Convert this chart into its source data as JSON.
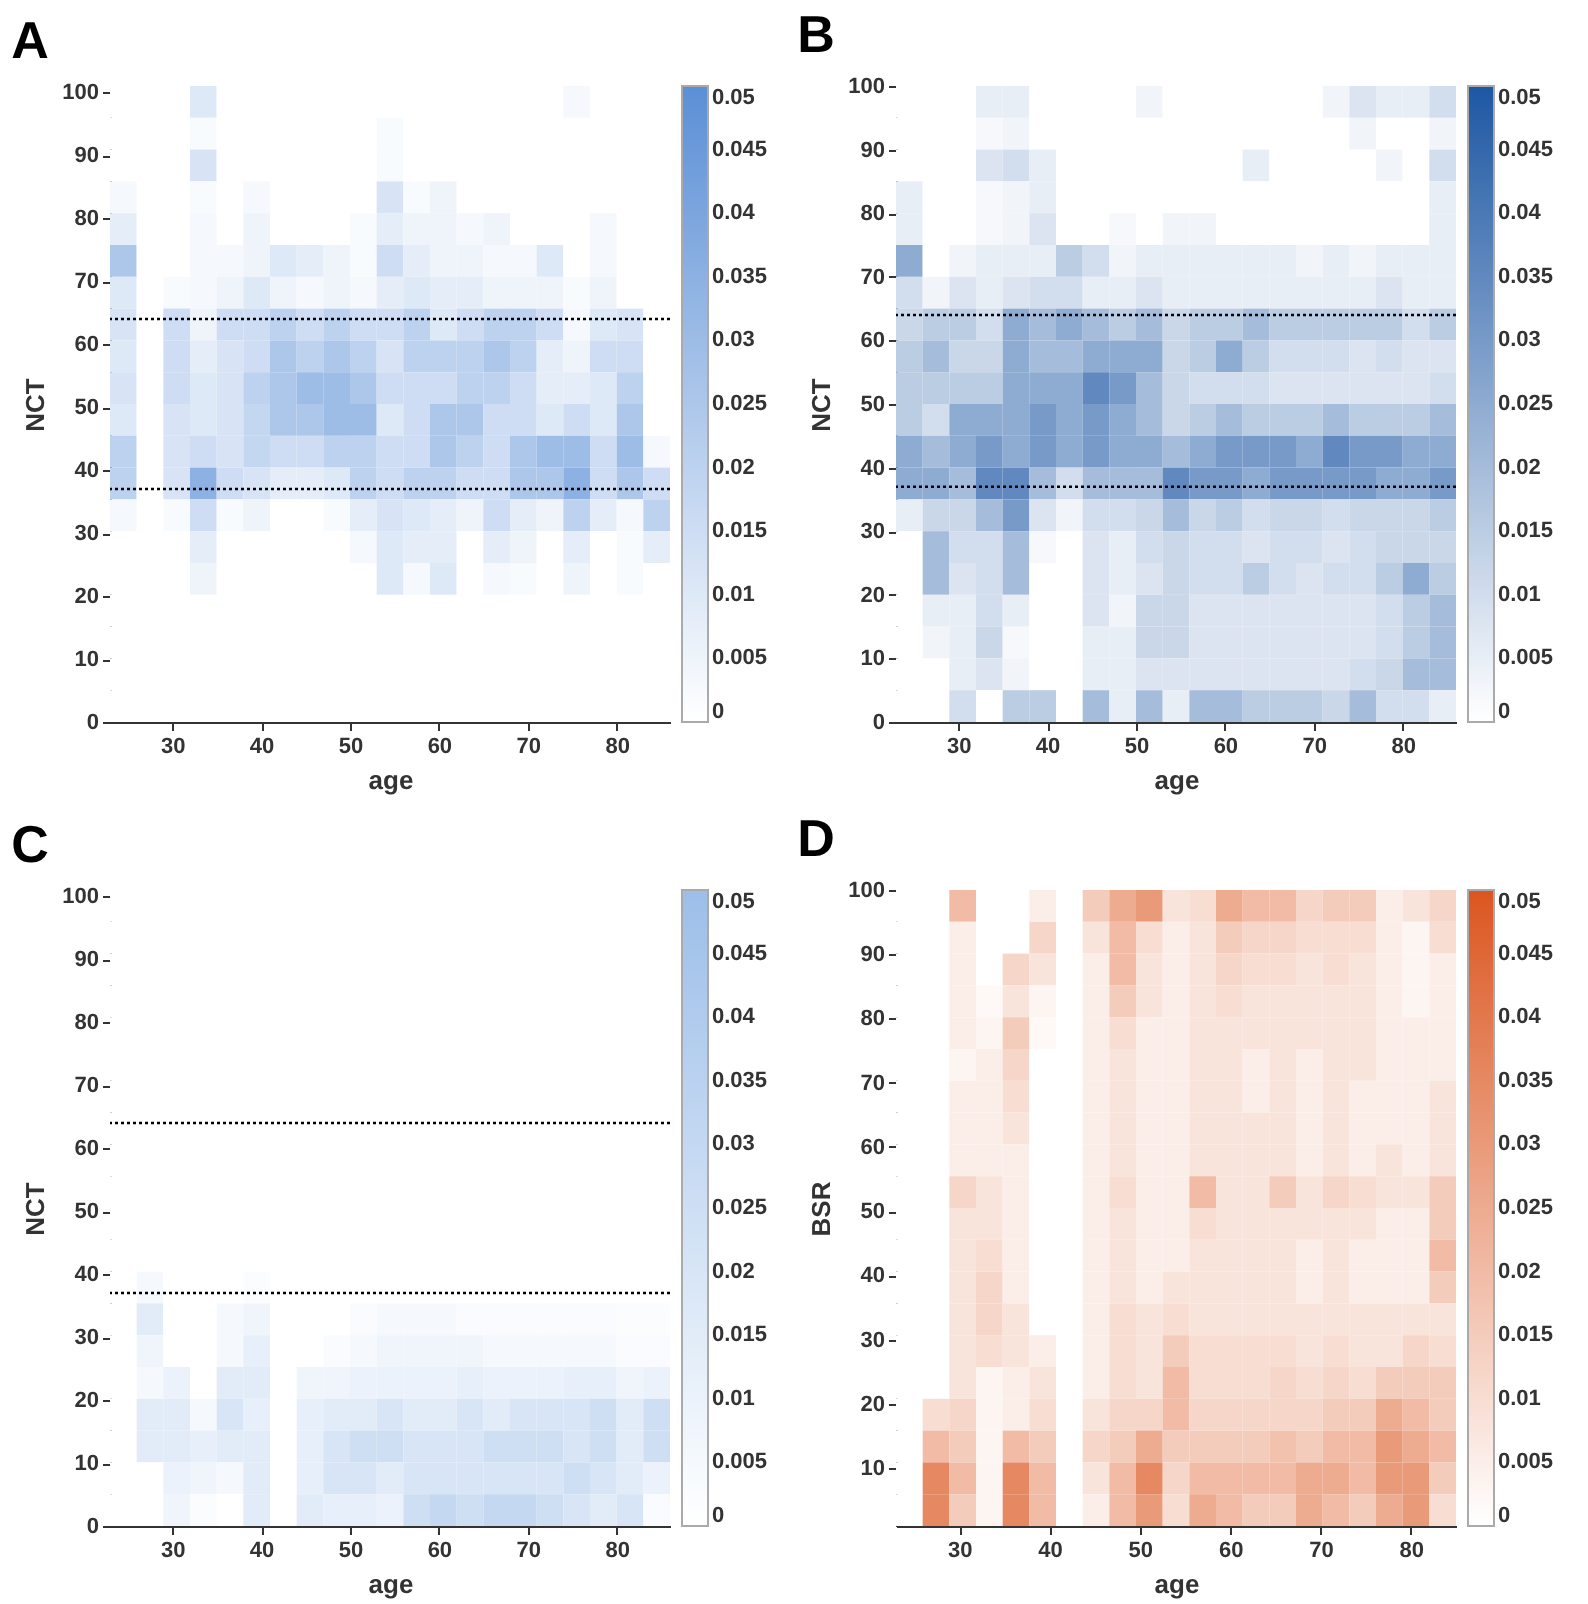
{
  "chart_data": [
    {
      "type": "heatmap",
      "title": "A",
      "xlabel": "age",
      "ylabel": "NCT",
      "xlim": [
        23,
        86
      ],
      "xticks": [
        30,
        40,
        50,
        60,
        70,
        80
      ],
      "ylim": [
        0,
        101
      ],
      "yticks": [
        0,
        10,
        20,
        30,
        40,
        50,
        60,
        70,
        80,
        90,
        100
      ],
      "clim": [
        0,
        0.05
      ],
      "cticks": [
        0,
        0.005,
        0.01,
        0.015,
        0.02,
        0.025,
        0.03,
        0.035,
        0.04,
        0.045,
        0.05
      ],
      "colors": [
        "#ffffff",
        "#5b8fd6"
      ],
      "ref_lines": [
        {
          "axis": "y",
          "value": 64,
          "color": "#000000",
          "line_style": "dotted"
        },
        {
          "axis": "y",
          "value": 37,
          "color": "#000000",
          "line_style": "dotted"
        }
      ],
      "cells": [
        [
          0,
          0,
          0,
          0.01,
          0,
          0,
          0,
          0,
          0,
          0,
          0,
          0,
          0,
          0,
          0,
          0,
          0,
          0.003,
          0,
          0,
          0
        ],
        [
          0,
          0,
          0,
          0.002,
          0,
          0,
          0,
          0,
          0,
          0,
          0.002,
          0,
          0,
          0,
          0,
          0,
          0,
          0,
          0,
          0,
          0
        ],
        [
          0,
          0,
          0,
          0.012,
          0,
          0,
          0,
          0,
          0,
          0,
          0.002,
          0,
          0,
          0,
          0,
          0,
          0,
          0,
          0,
          0,
          0
        ],
        [
          0.003,
          0,
          0,
          0.002,
          0,
          0.003,
          0,
          0,
          0,
          0,
          0.012,
          0.002,
          0.005,
          0,
          0,
          0,
          0,
          0,
          0,
          0,
          0
        ],
        [
          0.008,
          0,
          0,
          0.003,
          0,
          0.005,
          0,
          0,
          0,
          0.002,
          0.008,
          0.005,
          0.005,
          0.003,
          0.005,
          0,
          0,
          0,
          0.003,
          0,
          0
        ],
        [
          0.025,
          0,
          0,
          0.003,
          0.003,
          0.005,
          0.01,
          0.008,
          0.005,
          0.002,
          0.015,
          0.008,
          0.005,
          0.005,
          0.003,
          0.003,
          0.01,
          0,
          0.003,
          0,
          0
        ],
        [
          0.01,
          0,
          0.002,
          0.003,
          0.005,
          0.01,
          0.005,
          0.003,
          0.005,
          0.003,
          0.008,
          0.01,
          0.008,
          0.008,
          0.005,
          0.005,
          0.005,
          0.002,
          0.005,
          0,
          0
        ],
        [
          0.012,
          0,
          0.015,
          0.005,
          0.015,
          0.015,
          0.02,
          0.015,
          0.02,
          0.015,
          0.015,
          0.02,
          0.01,
          0.015,
          0.02,
          0.02,
          0.015,
          0.003,
          0.01,
          0.012,
          0
        ],
        [
          0.01,
          0,
          0.015,
          0.008,
          0.012,
          0.015,
          0.025,
          0.02,
          0.025,
          0.02,
          0.012,
          0.02,
          0.02,
          0.02,
          0.025,
          0.02,
          0.008,
          0.005,
          0.015,
          0.015,
          0
        ],
        [
          0.012,
          0,
          0.015,
          0.01,
          0.012,
          0.02,
          0.025,
          0.03,
          0.03,
          0.025,
          0.015,
          0.015,
          0.015,
          0.02,
          0.02,
          0.015,
          0.008,
          0.008,
          0.01,
          0.02,
          0
        ],
        [
          0.01,
          0,
          0.012,
          0.01,
          0.012,
          0.018,
          0.025,
          0.025,
          0.03,
          0.03,
          0.01,
          0.015,
          0.025,
          0.025,
          0.015,
          0.015,
          0.01,
          0.015,
          0.01,
          0.025,
          0
        ],
        [
          0.02,
          0,
          0.012,
          0.015,
          0.012,
          0.018,
          0.015,
          0.015,
          0.02,
          0.02,
          0.015,
          0.015,
          0.025,
          0.02,
          0.015,
          0.025,
          0.03,
          0.03,
          0.015,
          0.03,
          0.003
        ],
        [
          0.02,
          0,
          0.012,
          0.035,
          0.015,
          0.012,
          0.008,
          0.008,
          0.01,
          0.02,
          0.015,
          0.02,
          0.02,
          0.015,
          0.015,
          0.025,
          0.025,
          0.035,
          0.015,
          0.025,
          0.015
        ],
        [
          0.003,
          0,
          0.002,
          0.015,
          0.002,
          0.005,
          0,
          0,
          0.002,
          0.008,
          0.012,
          0.01,
          0.008,
          0.005,
          0.015,
          0.008,
          0.005,
          0.02,
          0.008,
          0.003,
          0.02
        ],
        [
          0,
          0,
          0,
          0.008,
          0,
          0,
          0,
          0,
          0,
          0.003,
          0.01,
          0.008,
          0.008,
          0,
          0.008,
          0.005,
          0,
          0.008,
          0,
          0.002,
          0.008
        ],
        [
          0,
          0,
          0,
          0.005,
          0,
          0,
          0,
          0,
          0,
          0,
          0.01,
          0.003,
          0.01,
          0,
          0.003,
          0.002,
          0,
          0.005,
          0,
          0.002,
          0
        ],
        [
          0,
          0,
          0,
          0,
          0,
          0,
          0,
          0,
          0,
          0,
          0,
          0,
          0,
          0,
          0,
          0,
          0,
          0,
          0,
          0,
          0
        ],
        [
          0,
          0,
          0,
          0,
          0,
          0,
          0,
          0,
          0,
          0,
          0,
          0,
          0,
          0,
          0,
          0,
          0,
          0,
          0,
          0,
          0
        ],
        [
          0,
          0,
          0,
          0,
          0,
          0,
          0,
          0,
          0,
          0,
          0,
          0,
          0,
          0,
          0,
          0,
          0,
          0,
          0,
          0,
          0
        ],
        [
          0,
          0,
          0,
          0,
          0,
          0,
          0,
          0,
          0,
          0,
          0,
          0,
          0,
          0,
          0,
          0,
          0,
          0,
          0,
          0,
          0
        ]
      ]
    },
    {
      "type": "heatmap",
      "title": "B",
      "xlabel": "age",
      "ylabel": "NCT",
      "xlim": [
        23,
        86
      ],
      "xticks": [
        30,
        40,
        50,
        60,
        70,
        80
      ],
      "ylim": [
        0,
        100
      ],
      "yticks": [
        0,
        10,
        20,
        30,
        40,
        50,
        60,
        70,
        80,
        90,
        100
      ],
      "clim": [
        0,
        0.05
      ],
      "cticks": [
        0,
        0.005,
        0.01,
        0.015,
        0.02,
        0.025,
        0.03,
        0.035,
        0.04,
        0.045,
        0.05
      ],
      "colors": [
        "#ffffff",
        "#1d57a3"
      ],
      "ref_lines": [
        {
          "axis": "y",
          "value": 64,
          "color": "#000000",
          "line_style": "dotted"
        },
        {
          "axis": "y",
          "value": 37,
          "color": "#000000",
          "line_style": "dotted"
        }
      ],
      "cells": [
        [
          0,
          0,
          0,
          0.005,
          0.005,
          0,
          0,
          0,
          0,
          0.003,
          0,
          0,
          0,
          0,
          0,
          0,
          0.003,
          0.008,
          0.005,
          0.005,
          0.01
        ],
        [
          0,
          0,
          0,
          0.002,
          0.003,
          0,
          0,
          0,
          0,
          0,
          0,
          0,
          0,
          0,
          0,
          0,
          0,
          0.003,
          0,
          0,
          0.003
        ],
        [
          0,
          0,
          0,
          0.008,
          0.01,
          0.005,
          0,
          0,
          0,
          0,
          0,
          0,
          0,
          0.005,
          0,
          0,
          0,
          0,
          0.003,
          0,
          0.01
        ],
        [
          0.005,
          0,
          0,
          0.002,
          0.003,
          0.005,
          0,
          0,
          0,
          0,
          0,
          0,
          0,
          0,
          0,
          0,
          0,
          0,
          0,
          0,
          0.005
        ],
        [
          0.005,
          0,
          0,
          0.002,
          0.003,
          0.008,
          0,
          0,
          0.002,
          0,
          0.003,
          0.003,
          0,
          0,
          0,
          0,
          0,
          0,
          0,
          0,
          0.005
        ],
        [
          0.025,
          0,
          0.003,
          0.005,
          0.005,
          0.005,
          0.015,
          0.01,
          0.003,
          0.005,
          0.005,
          0.005,
          0.005,
          0.005,
          0.005,
          0.003,
          0.005,
          0.003,
          0.005,
          0.005,
          0.005
        ],
        [
          0.01,
          0.003,
          0.008,
          0.005,
          0.008,
          0.01,
          0.01,
          0.005,
          0.005,
          0.008,
          0.005,
          0.005,
          0.005,
          0.005,
          0.005,
          0.005,
          0.005,
          0.005,
          0.008,
          0.005,
          0.005
        ],
        [
          0.012,
          0.015,
          0.015,
          0.01,
          0.025,
          0.02,
          0.025,
          0.02,
          0.015,
          0.02,
          0.012,
          0.015,
          0.015,
          0.02,
          0.015,
          0.015,
          0.015,
          0.015,
          0.015,
          0.01,
          0.015
        ],
        [
          0.015,
          0.02,
          0.012,
          0.012,
          0.025,
          0.02,
          0.02,
          0.025,
          0.025,
          0.025,
          0.012,
          0.015,
          0.025,
          0.015,
          0.01,
          0.01,
          0.01,
          0.008,
          0.01,
          0.008,
          0.008
        ],
        [
          0.015,
          0.015,
          0.015,
          0.015,
          0.025,
          0.025,
          0.025,
          0.035,
          0.03,
          0.02,
          0.012,
          0.01,
          0.01,
          0.01,
          0.008,
          0.008,
          0.008,
          0.008,
          0.008,
          0.008,
          0.01
        ],
        [
          0.015,
          0.01,
          0.025,
          0.025,
          0.025,
          0.03,
          0.025,
          0.03,
          0.025,
          0.02,
          0.012,
          0.015,
          0.02,
          0.015,
          0.015,
          0.015,
          0.02,
          0.015,
          0.015,
          0.015,
          0.02
        ],
        [
          0.025,
          0.02,
          0.025,
          0.03,
          0.025,
          0.03,
          0.025,
          0.03,
          0.025,
          0.025,
          0.02,
          0.025,
          0.03,
          0.03,
          0.03,
          0.025,
          0.035,
          0.03,
          0.03,
          0.025,
          0.025
        ],
        [
          0.025,
          0.025,
          0.02,
          0.035,
          0.035,
          0.02,
          0.01,
          0.02,
          0.02,
          0.02,
          0.035,
          0.03,
          0.03,
          0.025,
          0.03,
          0.03,
          0.03,
          0.03,
          0.025,
          0.025,
          0.03
        ],
        [
          0.005,
          0.012,
          0.012,
          0.02,
          0.03,
          0.008,
          0.003,
          0.01,
          0.01,
          0.012,
          0.02,
          0.012,
          0.015,
          0.01,
          0.012,
          0.012,
          0.01,
          0.012,
          0.012,
          0.012,
          0.015
        ],
        [
          0,
          0.02,
          0.01,
          0.01,
          0.02,
          0.002,
          0,
          0.008,
          0.005,
          0.01,
          0.012,
          0.01,
          0.01,
          0.008,
          0.01,
          0.01,
          0.008,
          0.01,
          0.012,
          0.012,
          0.012
        ],
        [
          0,
          0.02,
          0.008,
          0.01,
          0.02,
          0,
          0,
          0.008,
          0.005,
          0.008,
          0.012,
          0.01,
          0.01,
          0.015,
          0.01,
          0.008,
          0.01,
          0.01,
          0.015,
          0.025,
          0.015
        ],
        [
          0,
          0.005,
          0.005,
          0.01,
          0.005,
          0,
          0,
          0.008,
          0.003,
          0.012,
          0.012,
          0.008,
          0.008,
          0.008,
          0.008,
          0.008,
          0.008,
          0.008,
          0.01,
          0.015,
          0.02
        ],
        [
          0,
          0.003,
          0.005,
          0.012,
          0.002,
          0,
          0,
          0.005,
          0.005,
          0.012,
          0.012,
          0.008,
          0.008,
          0.008,
          0.008,
          0.008,
          0.008,
          0.008,
          0.01,
          0.015,
          0.02
        ],
        [
          0,
          0,
          0.005,
          0.008,
          0.003,
          0,
          0,
          0.005,
          0.005,
          0.008,
          0.008,
          0.008,
          0.008,
          0.008,
          0.008,
          0.008,
          0.008,
          0.01,
          0.012,
          0.02,
          0.02
        ],
        [
          0,
          0,
          0.01,
          0,
          0.015,
          0.015,
          0,
          0.02,
          0.005,
          0.02,
          0.005,
          0.02,
          0.02,
          0.015,
          0.015,
          0.015,
          0.012,
          0.02,
          0.01,
          0.01,
          0.005
        ]
      ]
    },
    {
      "type": "heatmap",
      "title": "C",
      "xlabel": "age",
      "ylabel": "NCT",
      "xlim": [
        23,
        86
      ],
      "xticks": [
        30,
        40,
        50,
        60,
        70,
        80
      ],
      "ylim": [
        0,
        101
      ],
      "yticks": [
        0,
        10,
        20,
        30,
        40,
        50,
        60,
        70,
        80,
        90,
        100
      ],
      "clim": [
        0,
        0.05
      ],
      "cticks": [
        0,
        0.005,
        0.01,
        0.015,
        0.02,
        0.025,
        0.03,
        0.035,
        0.04,
        0.045,
        0.05
      ],
      "colors": [
        "#ffffff",
        "#9cbee9"
      ],
      "ref_lines": [
        {
          "axis": "y",
          "value": 64,
          "color": "#000000",
          "line_style": "dotted"
        },
        {
          "axis": "y",
          "value": 37,
          "color": "#000000",
          "line_style": "dotted"
        }
      ],
      "cells": [
        [
          0,
          0,
          0,
          0,
          0,
          0,
          0,
          0,
          0,
          0,
          0,
          0,
          0,
          0,
          0,
          0,
          0,
          0,
          0,
          0,
          0
        ],
        [
          0,
          0,
          0,
          0,
          0,
          0,
          0,
          0,
          0,
          0,
          0,
          0,
          0,
          0,
          0,
          0,
          0,
          0,
          0,
          0,
          0
        ],
        [
          0,
          0,
          0,
          0,
          0,
          0,
          0,
          0,
          0,
          0,
          0,
          0,
          0,
          0,
          0,
          0,
          0,
          0,
          0,
          0,
          0
        ],
        [
          0,
          0,
          0,
          0,
          0,
          0,
          0,
          0,
          0,
          0,
          0,
          0,
          0,
          0,
          0,
          0,
          0,
          0,
          0,
          0,
          0
        ],
        [
          0,
          0,
          0,
          0,
          0,
          0,
          0,
          0,
          0,
          0,
          0,
          0,
          0,
          0,
          0,
          0,
          0,
          0,
          0,
          0,
          0
        ],
        [
          0,
          0,
          0,
          0,
          0,
          0,
          0,
          0,
          0,
          0,
          0,
          0,
          0,
          0,
          0,
          0,
          0,
          0,
          0,
          0,
          0
        ],
        [
          0,
          0,
          0,
          0,
          0,
          0,
          0,
          0,
          0,
          0,
          0,
          0,
          0,
          0,
          0,
          0,
          0,
          0,
          0,
          0,
          0
        ],
        [
          0,
          0,
          0,
          0,
          0,
          0,
          0,
          0,
          0,
          0,
          0,
          0,
          0,
          0,
          0,
          0,
          0,
          0,
          0,
          0,
          0
        ],
        [
          0,
          0,
          0,
          0,
          0,
          0,
          0,
          0,
          0,
          0,
          0,
          0,
          0,
          0,
          0,
          0,
          0,
          0,
          0,
          0,
          0
        ],
        [
          0,
          0,
          0,
          0,
          0,
          0,
          0,
          0,
          0,
          0,
          0,
          0,
          0,
          0,
          0,
          0,
          0,
          0,
          0,
          0,
          0
        ],
        [
          0,
          0,
          0,
          0,
          0,
          0,
          0,
          0,
          0,
          0,
          0,
          0,
          0,
          0,
          0,
          0,
          0,
          0,
          0,
          0,
          0
        ],
        [
          0,
          0,
          0,
          0,
          0,
          0,
          0,
          0,
          0,
          0,
          0,
          0,
          0,
          0,
          0,
          0,
          0,
          0,
          0,
          0,
          0
        ],
        [
          0,
          0.005,
          0,
          0,
          0,
          0.002,
          0,
          0,
          0,
          0,
          0,
          0,
          0,
          0,
          0,
          0,
          0,
          0,
          0,
          0,
          0
        ],
        [
          0,
          0.015,
          0,
          0,
          0.005,
          0.008,
          0,
          0,
          0,
          0.003,
          0.005,
          0.005,
          0.005,
          0.003,
          0.003,
          0.003,
          0.003,
          0.003,
          0.003,
          0.002,
          0.002
        ],
        [
          0,
          0.008,
          0,
          0,
          0.005,
          0.012,
          0,
          0,
          0.003,
          0.005,
          0.008,
          0.008,
          0.008,
          0.008,
          0.005,
          0.005,
          0.005,
          0.005,
          0.005,
          0.003,
          0.003
        ],
        [
          0,
          0.005,
          0.01,
          0,
          0.015,
          0.015,
          0,
          0.008,
          0.008,
          0.01,
          0.01,
          0.01,
          0.01,
          0.012,
          0.01,
          0.01,
          0.01,
          0.012,
          0.012,
          0.008,
          0.01
        ],
        [
          0,
          0.015,
          0.015,
          0.005,
          0.02,
          0.012,
          0,
          0.012,
          0.015,
          0.015,
          0.02,
          0.015,
          0.015,
          0.02,
          0.015,
          0.02,
          0.02,
          0.02,
          0.025,
          0.015,
          0.025
        ],
        [
          0,
          0.015,
          0.015,
          0.012,
          0.015,
          0.015,
          0,
          0.012,
          0.02,
          0.025,
          0.025,
          0.02,
          0.02,
          0.02,
          0.025,
          0.025,
          0.025,
          0.02,
          0.025,
          0.015,
          0.025
        ],
        [
          0,
          0,
          0.01,
          0.008,
          0.005,
          0.015,
          0,
          0.012,
          0.02,
          0.02,
          0.015,
          0.02,
          0.02,
          0.02,
          0.02,
          0.02,
          0.02,
          0.025,
          0.02,
          0.015,
          0.01
        ],
        [
          0,
          0,
          0.008,
          0.002,
          0,
          0.015,
          0,
          0.015,
          0.012,
          0.012,
          0.01,
          0.025,
          0.03,
          0.025,
          0.03,
          0.03,
          0.025,
          0.02,
          0.015,
          0.02,
          0.003
        ]
      ]
    },
    {
      "type": "heatmap",
      "title": "D",
      "xlabel": "age",
      "ylabel": "BSR",
      "xlim": [
        23,
        85
      ],
      "xticks": [
        30,
        40,
        50,
        60,
        70,
        80
      ],
      "ylim": [
        1,
        100
      ],
      "yticks": [
        10,
        20,
        30,
        40,
        50,
        60,
        70,
        80,
        90,
        100
      ],
      "clim": [
        0,
        0.05
      ],
      "cticks": [
        0,
        0.005,
        0.01,
        0.015,
        0.02,
        0.025,
        0.03,
        0.035,
        0.04,
        0.045,
        0.05
      ],
      "colors": [
        "#ffffff",
        "#db5620"
      ],
      "cells": [
        [
          0,
          0,
          0.02,
          0,
          0,
          0.005,
          0,
          0.015,
          0.025,
          0.03,
          0.008,
          0.01,
          0.025,
          0.02,
          0.02,
          0.012,
          0.015,
          0.015,
          0.005,
          0.008,
          0.012
        ],
        [
          0,
          0,
          0.005,
          0,
          0,
          0.012,
          0,
          0.008,
          0.02,
          0.01,
          0.005,
          0.008,
          0.015,
          0.012,
          0.012,
          0.01,
          0.01,
          0.01,
          0.005,
          0.003,
          0.01
        ],
        [
          0,
          0,
          0.005,
          0,
          0.012,
          0.008,
          0,
          0.005,
          0.02,
          0.008,
          0.005,
          0.008,
          0.012,
          0.01,
          0.01,
          0.008,
          0.01,
          0.008,
          0.005,
          0.003,
          0.005
        ],
        [
          0,
          0,
          0.005,
          0.002,
          0.008,
          0.003,
          0,
          0.005,
          0.015,
          0.008,
          0.005,
          0.008,
          0.01,
          0.008,
          0.008,
          0.008,
          0.008,
          0.008,
          0.005,
          0.003,
          0.005
        ],
        [
          0,
          0,
          0.005,
          0.003,
          0.015,
          0.002,
          0,
          0.005,
          0.01,
          0.005,
          0.005,
          0.008,
          0.008,
          0.008,
          0.008,
          0.008,
          0.008,
          0.008,
          0.005,
          0.005,
          0.005
        ],
        [
          0,
          0,
          0.003,
          0.005,
          0.012,
          0,
          0,
          0.005,
          0.008,
          0.005,
          0.005,
          0.008,
          0.008,
          0.005,
          0.008,
          0.005,
          0.008,
          0.008,
          0.005,
          0.005,
          0.005
        ],
        [
          0,
          0,
          0.005,
          0.005,
          0.01,
          0,
          0,
          0.005,
          0.008,
          0.005,
          0.005,
          0.008,
          0.008,
          0.005,
          0.008,
          0.005,
          0.008,
          0.005,
          0.005,
          0.005,
          0.008
        ],
        [
          0,
          0,
          0.005,
          0.005,
          0.008,
          0,
          0,
          0.005,
          0.008,
          0.005,
          0.005,
          0.008,
          0.008,
          0.008,
          0.008,
          0.005,
          0.008,
          0.005,
          0.005,
          0.005,
          0.008
        ],
        [
          0,
          0,
          0.005,
          0.005,
          0.005,
          0,
          0,
          0.005,
          0.008,
          0.005,
          0.005,
          0.008,
          0.008,
          0.008,
          0.008,
          0.005,
          0.008,
          0.005,
          0.008,
          0.005,
          0.008
        ],
        [
          0,
          0,
          0.012,
          0.008,
          0.005,
          0,
          0,
          0.005,
          0.01,
          0.005,
          0.005,
          0.02,
          0.008,
          0.008,
          0.015,
          0.008,
          0.012,
          0.01,
          0.008,
          0.008,
          0.015
        ],
        [
          0,
          0,
          0.008,
          0.008,
          0.005,
          0,
          0,
          0.005,
          0.008,
          0.005,
          0.005,
          0.01,
          0.008,
          0.008,
          0.008,
          0.008,
          0.008,
          0.008,
          0.005,
          0.005,
          0.015
        ],
        [
          0,
          0,
          0.008,
          0.01,
          0.005,
          0,
          0,
          0.005,
          0.008,
          0.005,
          0.005,
          0.008,
          0.008,
          0.008,
          0.008,
          0.005,
          0.008,
          0.005,
          0.005,
          0.005,
          0.02
        ],
        [
          0,
          0,
          0.008,
          0.012,
          0.005,
          0,
          0,
          0.005,
          0.008,
          0.005,
          0.008,
          0.008,
          0.008,
          0.008,
          0.008,
          0.005,
          0.008,
          0.005,
          0.005,
          0.005,
          0.015
        ],
        [
          0,
          0,
          0.008,
          0.012,
          0.008,
          0,
          0,
          0.005,
          0.01,
          0.008,
          0.01,
          0.008,
          0.008,
          0.008,
          0.008,
          0.008,
          0.008,
          0.008,
          0.008,
          0.008,
          0.008
        ],
        [
          0,
          0,
          0.008,
          0.01,
          0.008,
          0.005,
          0,
          0.005,
          0.01,
          0.008,
          0.015,
          0.01,
          0.01,
          0.01,
          0.01,
          0.008,
          0.01,
          0.008,
          0.008,
          0.012,
          0.01
        ],
        [
          0,
          0,
          0.008,
          0.003,
          0.005,
          0.008,
          0,
          0.005,
          0.01,
          0.008,
          0.02,
          0.01,
          0.01,
          0.01,
          0.012,
          0.01,
          0.012,
          0.01,
          0.015,
          0.015,
          0.015
        ],
        [
          0,
          0.01,
          0.012,
          0.003,
          0.005,
          0.01,
          0,
          0.008,
          0.012,
          0.012,
          0.02,
          0.012,
          0.012,
          0.012,
          0.012,
          0.012,
          0.015,
          0.015,
          0.025,
          0.02,
          0.015
        ],
        [
          0,
          0.02,
          0.015,
          0.003,
          0.02,
          0.015,
          0,
          0.012,
          0.015,
          0.025,
          0.015,
          0.015,
          0.015,
          0.015,
          0.018,
          0.015,
          0.02,
          0.02,
          0.03,
          0.025,
          0.02
        ],
        [
          0,
          0.035,
          0.02,
          0.003,
          0.035,
          0.02,
          0,
          0.008,
          0.02,
          0.035,
          0.012,
          0.02,
          0.02,
          0.02,
          0.02,
          0.025,
          0.025,
          0.02,
          0.03,
          0.03,
          0.015
        ],
        [
          0,
          0.035,
          0.015,
          0.003,
          0.035,
          0.02,
          0,
          0.005,
          0.02,
          0.03,
          0.01,
          0.025,
          0.02,
          0.015,
          0.015,
          0.025,
          0.02,
          0.015,
          0.025,
          0.03,
          0.01
        ]
      ]
    }
  ]
}
